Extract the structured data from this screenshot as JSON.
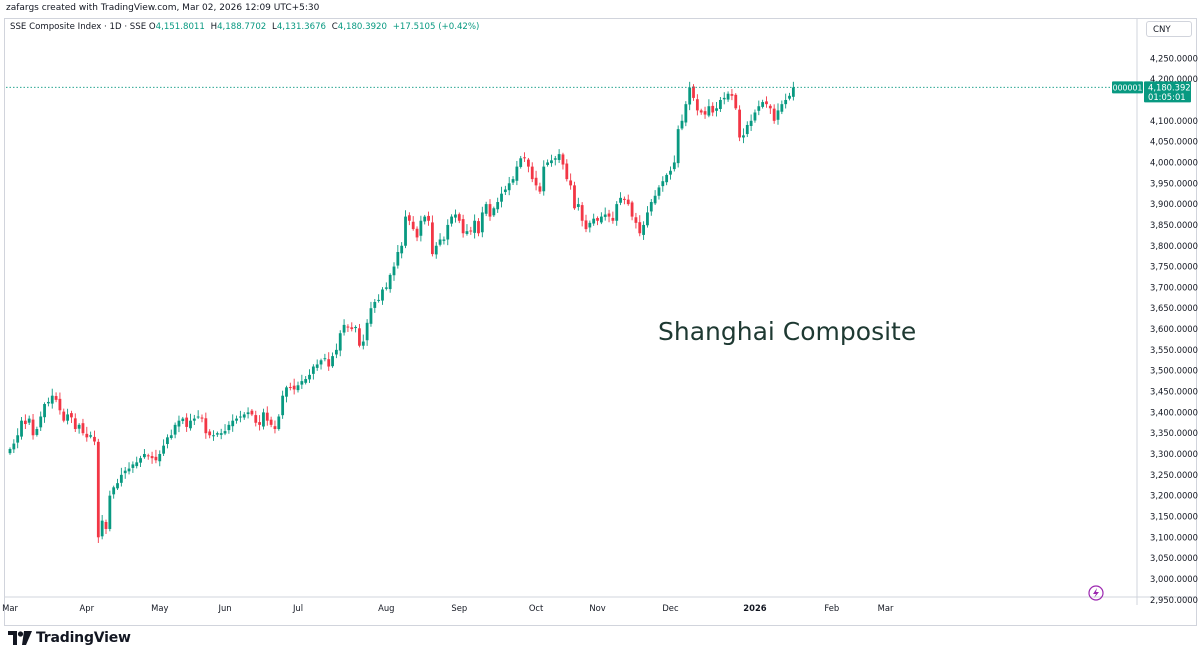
{
  "header": {
    "credit": "zafargs created with TradingView.com, Mar 02, 2026 12:09 UTC+5:30"
  },
  "legend": {
    "symbol": "SSE Composite Index · 1D · SSE",
    "open_label": "O",
    "open": "4,151.8011",
    "high_label": "H",
    "high": "4,188.7702",
    "low_label": "L",
    "low": "4,131.3676",
    "close_label": "C",
    "close": "4,180.3920",
    "change": "+17.5105 (+0.42%)"
  },
  "currency": "CNY",
  "annotation": "Shanghai Composite",
  "last_price": {
    "symbol": "000001",
    "price": "4,180.3920",
    "countdown": "01:05:01"
  },
  "footer": {
    "brand": "TradingView"
  },
  "colors": {
    "up": "#089981",
    "down": "#f23645",
    "text": "#131722",
    "grid": "#d1d4dc",
    "annotation": "#1e3932"
  },
  "icons": {
    "logo": "tradingview-logo-icon",
    "lightning": "lightning-icon"
  },
  "chart_data": {
    "type": "candlestick",
    "title": "",
    "ylim": [
      2920,
      4270
    ],
    "y_ticks": [
      {
        "value": 4250,
        "label": "4,250.0000"
      },
      {
        "value": 4200,
        "label": "4,200.0000"
      },
      {
        "value": 4100,
        "label": "4,100.0000"
      },
      {
        "value": 4050,
        "label": "4,050.0000"
      },
      {
        "value": 4000,
        "label": "4,000.0000"
      },
      {
        "value": 3950,
        "label": "3,950.0000"
      },
      {
        "value": 3900,
        "label": "3,900.0000"
      },
      {
        "value": 3850,
        "label": "3,850.0000"
      },
      {
        "value": 3800,
        "label": "3,800.0000"
      },
      {
        "value": 3750,
        "label": "3,750.0000"
      },
      {
        "value": 3700,
        "label": "3,700.0000"
      },
      {
        "value": 3650,
        "label": "3,650.0000"
      },
      {
        "value": 3600,
        "label": "3,600.0000"
      },
      {
        "value": 3550,
        "label": "3,550.0000"
      },
      {
        "value": 3500,
        "label": "3,500.0000"
      },
      {
        "value": 3450,
        "label": "3,450.0000"
      },
      {
        "value": 3400,
        "label": "3,400.0000"
      },
      {
        "value": 3350,
        "label": "3,350.0000"
      },
      {
        "value": 3300,
        "label": "3,300.0000"
      },
      {
        "value": 3250,
        "label": "3,250.0000"
      },
      {
        "value": 3200,
        "label": "3,200.0000"
      },
      {
        "value": 3150,
        "label": "3,150.0000"
      },
      {
        "value": 3100,
        "label": "3,100.0000"
      },
      {
        "value": 3050,
        "label": "3,050.0000"
      },
      {
        "value": 3000,
        "label": "3,000.0000"
      },
      {
        "value": 2950,
        "label": "2,950.0000"
      }
    ],
    "x_ticks": [
      {
        "index": 0,
        "label": "Mar"
      },
      {
        "index": 20,
        "label": "Apr"
      },
      {
        "index": 39,
        "label": "May"
      },
      {
        "index": 56,
        "label": "Jun"
      },
      {
        "index": 75,
        "label": "Jul"
      },
      {
        "index": 98,
        "label": "Aug"
      },
      {
        "index": 117,
        "label": "Sep"
      },
      {
        "index": 137,
        "label": "Oct"
      },
      {
        "index": 153,
        "label": "Nov"
      },
      {
        "index": 172,
        "label": "Dec"
      },
      {
        "index": 194,
        "label": "2026"
      },
      {
        "index": 214,
        "label": "Feb"
      },
      {
        "index": 228,
        "label": "Mar"
      }
    ],
    "closes": [
      3312,
      3325,
      3345,
      3380,
      3372,
      3385,
      3345,
      3360,
      3390,
      3420,
      3425,
      3440,
      3430,
      3405,
      3380,
      3395,
      3388,
      3360,
      3370,
      3350,
      3340,
      3345,
      3330,
      3100,
      3140,
      3120,
      3200,
      3220,
      3230,
      3250,
      3260,
      3265,
      3275,
      3280,
      3290,
      3300,
      3295,
      3290,
      3285,
      3300,
      3320,
      3340,
      3345,
      3370,
      3380,
      3385,
      3365,
      3380,
      3385,
      3390,
      3385,
      3350,
      3345,
      3345,
      3350,
      3350,
      3355,
      3370,
      3380,
      3385,
      3390,
      3395,
      3400,
      3395,
      3375,
      3370,
      3400,
      3380,
      3370,
      3360,
      3390,
      3440,
      3460,
      3460,
      3455,
      3465,
      3475,
      3480,
      3490,
      3510,
      3515,
      3525,
      3530,
      3510,
      3535,
      3550,
      3590,
      3610,
      3605,
      3600,
      3605,
      3560,
      3570,
      3615,
      3650,
      3665,
      3670,
      3695,
      3700,
      3730,
      3750,
      3785,
      3800,
      3870,
      3860,
      3840,
      3820,
      3860,
      3870,
      3860,
      3780,
      3800,
      3815,
      3815,
      3850,
      3870,
      3875,
      3860,
      3830,
      3835,
      3835,
      3860,
      3830,
      3880,
      3900,
      3870,
      3890,
      3905,
      3925,
      3935,
      3950,
      3960,
      3990,
      4010,
      4010,
      3990,
      3960,
      3945,
      3930,
      3990,
      4000,
      4005,
      4010,
      4020,
      3995,
      3960,
      3945,
      3890,
      3900,
      3860,
      3840,
      3855,
      3865,
      3860,
      3870,
      3875,
      3870,
      3860,
      3900,
      3915,
      3910,
      3900,
      3870,
      3855,
      3830,
      3850,
      3880,
      3905,
      3920,
      3940,
      3955,
      3970,
      3980,
      4000,
      4080,
      4100,
      4140,
      4180,
      4155,
      4125,
      4120,
      4115,
      4135,
      4120,
      4130,
      4150,
      4155,
      4165,
      4160,
      4130,
      4060,
      4065,
      4090,
      4100,
      4120,
      4135,
      4145,
      4140,
      4130,
      4100,
      4125,
      4140,
      4150,
      4160,
      4180
    ],
    "last_value": 4180.392
  }
}
